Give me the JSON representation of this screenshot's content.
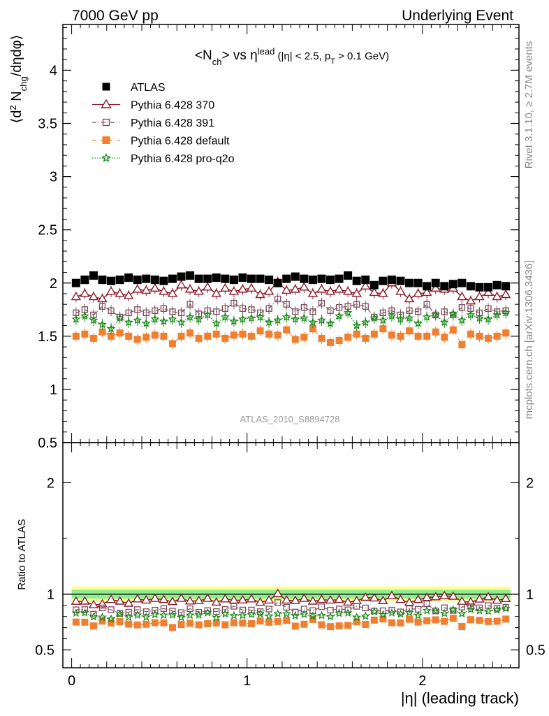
{
  "header": {
    "left": "7000 GeV pp",
    "right": "Underlying Event"
  },
  "side": {
    "rivet": "Rivet 3.1.10, ≥ 2.7M events",
    "mcplots": "mcplots.cern.ch [arXiv:1306.3436]"
  },
  "watermark": "ATLAS_2010_S8894728",
  "colors": {
    "atlas": "#000000",
    "p370": "#8b1a2b",
    "p391": "#7a4a5a",
    "pdefault": "#f07f30",
    "pq2o": "#1a8a1a",
    "band_inner": "#90ee90",
    "band_outer": "#ffff99"
  },
  "chart_data": [
    {
      "type": "scatter",
      "title": "<N_ch> vs η^lead (|η| < 2.5, p_T > 0.1 GeV)",
      "ylabel": "⟨d² N_chg/dηdφ⟩",
      "xlim": [
        -0.05,
        2.55
      ],
      "ylim": [
        0.5,
        4.43
      ],
      "yticks": [
        "0.5",
        "1",
        "1.5",
        "2",
        "2.5",
        "3",
        "3.5",
        "4"
      ],
      "x": [
        0.025,
        0.075,
        0.125,
        0.175,
        0.225,
        0.275,
        0.325,
        0.375,
        0.425,
        0.475,
        0.525,
        0.575,
        0.625,
        0.675,
        0.725,
        0.775,
        0.825,
        0.875,
        0.925,
        0.975,
        1.025,
        1.075,
        1.125,
        1.175,
        1.225,
        1.275,
        1.325,
        1.375,
        1.425,
        1.475,
        1.525,
        1.575,
        1.625,
        1.675,
        1.725,
        1.775,
        1.825,
        1.875,
        1.925,
        1.975,
        2.025,
        2.075,
        2.125,
        2.175,
        2.225,
        2.275,
        2.325,
        2.375,
        2.425,
        2.475
      ],
      "series": [
        {
          "name": "ATLAS",
          "color": "#000000",
          "marker": "square-filled",
          "values": [
            2.0,
            2.03,
            2.07,
            2.03,
            2.02,
            2.03,
            2.05,
            2.03,
            2.04,
            2.03,
            2.02,
            2.04,
            2.06,
            2.07,
            2.04,
            2.04,
            2.05,
            2.04,
            2.03,
            2.05,
            2.04,
            2.04,
            2.03,
            2.0,
            2.04,
            2.06,
            2.04,
            2.03,
            2.04,
            2.03,
            2.04,
            2.07,
            2.02,
            2.03,
            1.98,
            2.02,
            2.03,
            2.02,
            2.0,
            2.0,
            1.97,
            2.0,
            1.97,
            1.99,
            2.0,
            1.97,
            1.96,
            1.96,
            1.98,
            1.97
          ]
        },
        {
          "name": "Pythia 6.428 370",
          "color": "#8b1a2b",
          "marker": "triangle-open",
          "values": [
            1.87,
            1.9,
            1.87,
            1.85,
            1.92,
            1.9,
            1.88,
            1.94,
            1.93,
            1.95,
            1.92,
            1.9,
            1.98,
            1.94,
            1.92,
            1.96,
            1.9,
            1.95,
            1.92,
            1.94,
            1.95,
            1.89,
            1.92,
            2.01,
            1.93,
            1.94,
            1.96,
            1.9,
            1.94,
            1.92,
            1.94,
            1.92,
            1.9,
            1.97,
            1.91,
            1.9,
            2.0,
            1.92,
            1.85,
            1.9,
            1.91,
            1.95,
            1.94,
            1.95,
            1.87,
            1.83,
            1.87,
            1.91,
            1.87,
            1.89
          ]
        },
        {
          "name": "Pythia 6.428 391",
          "color": "#7a4a5a",
          "marker": "square-open",
          "values": [
            1.72,
            1.75,
            1.7,
            1.78,
            1.74,
            1.68,
            1.72,
            1.75,
            1.72,
            1.74,
            1.76,
            1.73,
            1.72,
            1.8,
            1.71,
            1.74,
            1.73,
            1.76,
            1.81,
            1.76,
            1.75,
            1.72,
            1.76,
            1.85,
            1.8,
            1.73,
            1.77,
            1.73,
            1.81,
            1.74,
            1.77,
            1.78,
            1.8,
            1.78,
            1.68,
            1.72,
            1.74,
            1.7,
            1.74,
            1.73,
            1.8,
            1.7,
            1.73,
            1.7,
            1.77,
            1.76,
            1.72,
            1.76,
            1.73,
            1.74
          ]
        },
        {
          "name": "Pythia 6.428 default",
          "color": "#f07f30",
          "marker": "square-filled",
          "values": [
            1.5,
            1.52,
            1.48,
            1.54,
            1.5,
            1.53,
            1.5,
            1.47,
            1.49,
            1.51,
            1.5,
            1.43,
            1.5,
            1.53,
            1.48,
            1.5,
            1.52,
            1.48,
            1.51,
            1.52,
            1.5,
            1.55,
            1.52,
            1.51,
            1.56,
            1.47,
            1.49,
            1.57,
            1.48,
            1.44,
            1.46,
            1.49,
            1.52,
            1.48,
            1.52,
            1.57,
            1.51,
            1.5,
            1.55,
            1.5,
            1.5,
            1.54,
            1.49,
            1.56,
            1.42,
            1.52,
            1.5,
            1.48,
            1.5,
            1.53
          ]
        },
        {
          "name": "Pythia 6.428 pro-q2o",
          "color": "#1a8a1a",
          "marker": "star-open",
          "values": [
            1.66,
            1.69,
            1.65,
            1.61,
            1.57,
            1.67,
            1.63,
            1.65,
            1.62,
            1.66,
            1.64,
            1.66,
            1.63,
            1.68,
            1.66,
            1.7,
            1.62,
            1.68,
            1.64,
            1.66,
            1.67,
            1.68,
            1.63,
            1.65,
            1.68,
            1.66,
            1.67,
            1.63,
            1.65,
            1.62,
            1.69,
            1.72,
            1.6,
            1.63,
            1.67,
            1.65,
            1.69,
            1.66,
            1.67,
            1.62,
            1.68,
            1.7,
            1.63,
            1.71,
            1.65,
            1.7,
            1.67,
            1.66,
            1.7,
            1.72
          ]
        }
      ]
    },
    {
      "type": "scatter",
      "ylabel": "Ratio to ATLAS",
      "xlabel": "|η| (leading track)",
      "xlim": [
        -0.05,
        2.55
      ],
      "ylim": [
        0.34,
        2.36
      ],
      "yticks": [
        "0.5",
        "1",
        "2"
      ],
      "xticks": [
        "0",
        "1",
        "2"
      ],
      "band_inner_halfwidth": 0.04,
      "band_outer_halfwidth": 0.07
    }
  ]
}
